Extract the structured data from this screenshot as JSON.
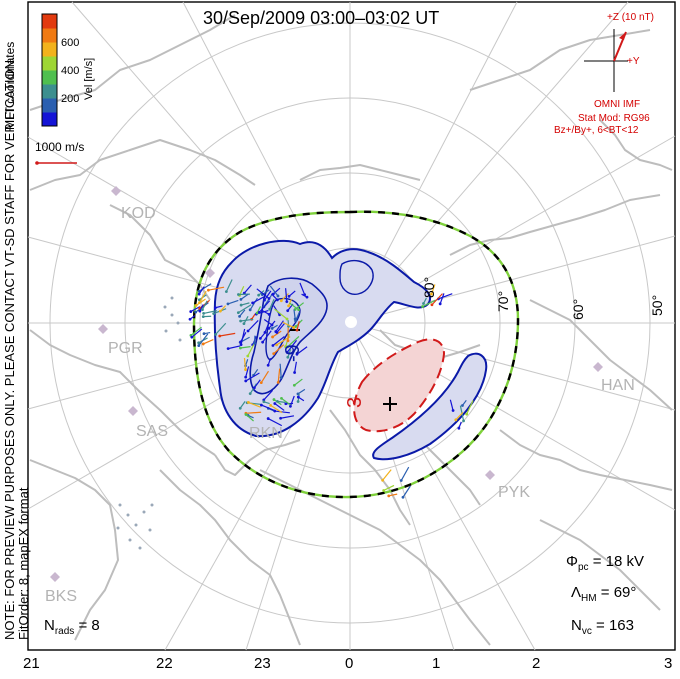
{
  "title": "30/Sep/2009 03:00–03:02 UT",
  "colorbar": {
    "ticks": [
      "600",
      "400",
      "200"
    ],
    "label": "Vel [m/s]",
    "colors": [
      "#1414d6",
      "#2a5fb0",
      "#3c8f8f",
      "#4fbf4f",
      "#9ed634",
      "#f2b21c",
      "#f07a12",
      "#e23a0f"
    ]
  },
  "coord_label": "MLT coordinates",
  "scale_vector": "1000 m/s",
  "notice": "NOTE: FOR PREVIEW PURPOSES ONLY. PLEASE CONTACT VT-SD STAFF FOR VERIFICATION.",
  "fit_info": "FitOrder: 8, mapEX format",
  "imf": {
    "z_label": "+Z (10 nT)",
    "y_label": "+Y",
    "source": "OMNI IMF",
    "model": "Stat Mod: RG96",
    "condition": "Bz+/By+, 6<BT<12"
  },
  "stations": [
    "KOD",
    "PGR",
    "SAS",
    "RKN",
    "HAN",
    "PYK",
    "BKS"
  ],
  "latitudes": [
    "80°",
    "70°",
    "60°",
    "50°"
  ],
  "contour_labels": {
    "neg": "-9",
    "pos": "3"
  },
  "mlt_ticks": [
    "21",
    "22",
    "23",
    "0",
    "1",
    "2",
    "3"
  ],
  "stats": {
    "phi_sym": "Φ",
    "phi_sub": "pc",
    "phi_val": "= 18 kV",
    "lambda_sym": "Λ",
    "lambda_sub": "HM",
    "lambda_val": "= 69°",
    "nvc_sym": "N",
    "nvc_sub": "vc",
    "nvc_val": "= 163",
    "nrads_sym": "N",
    "nrads_sub": "rads",
    "nrads_val": "= 8"
  },
  "colors": {
    "frame": "#000000",
    "grid": "#c8c8c8",
    "land": "#bdbdbd",
    "neg_fill": "#d8dbf0",
    "neg_line": "#0b1aa8",
    "pos_fill": "#f4d4d4",
    "pos_line": "#d11a1a",
    "hmb_green": "#7fd13b",
    "station": "#c9b7cf"
  }
}
